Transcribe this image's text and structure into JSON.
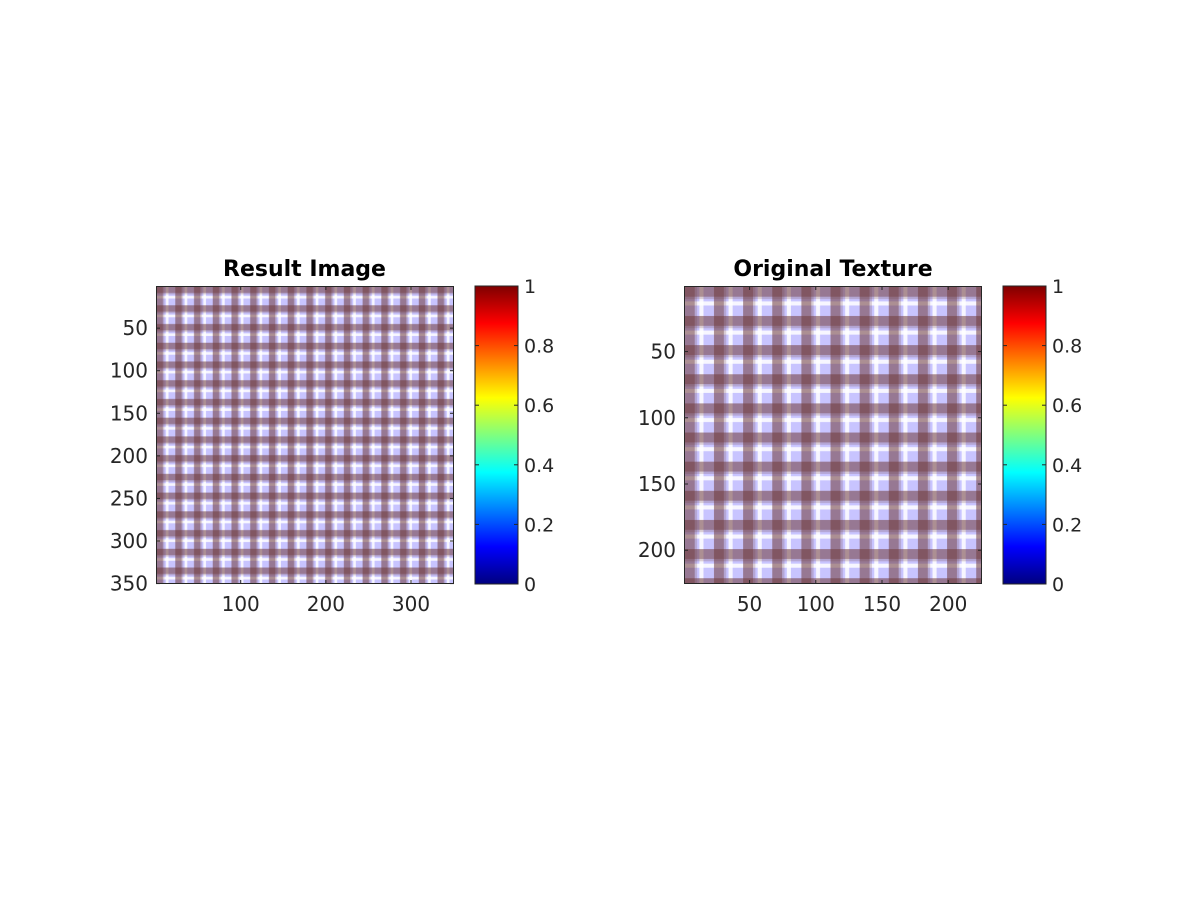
{
  "chart_data": [
    {
      "type": "heatmap",
      "title": "Result Image",
      "xlabel": "",
      "ylabel": "",
      "xlim": [
        0.5,
        350.5
      ],
      "ylim": [
        0.5,
        350.5
      ],
      "y_reversed": true,
      "xticks": [
        100,
        200,
        300
      ],
      "xtick_labels": [
        "100",
        "200",
        "300"
      ],
      "yticks": [
        50,
        100,
        150,
        200,
        250,
        300,
        350
      ],
      "ytick_labels": [
        "50",
        "100",
        "150",
        "200",
        "250",
        "300",
        "350"
      ],
      "pattern": {
        "kind": "plaid",
        "period": 22,
        "stripe_offset": 2,
        "dark_color": "#6e3a3a",
        "light_color": "#c8c4ff",
        "white_color": "#ffffff"
      },
      "colorbar": {
        "colormap": "jet",
        "limits": [
          0,
          1
        ],
        "ticks": [
          0,
          0.2,
          0.4,
          0.6,
          0.8,
          1
        ],
        "tick_labels": [
          "0",
          "0.2",
          "0.4",
          "0.6",
          "0.8",
          "1"
        ]
      }
    },
    {
      "type": "heatmap",
      "title": "Original Texture",
      "xlabel": "",
      "ylabel": "",
      "xlim": [
        0.5,
        225.5
      ],
      "ylim": [
        0.5,
        225.5
      ],
      "y_reversed": true,
      "xticks": [
        50,
        100,
        150,
        200
      ],
      "xtick_labels": [
        "50",
        "100",
        "150",
        "200"
      ],
      "yticks": [
        50,
        100,
        150,
        200
      ],
      "ytick_labels": [
        "50",
        "100",
        "150",
        "200"
      ],
      "pattern": {
        "kind": "plaid",
        "period": 22,
        "stripe_offset": 2,
        "dark_color": "#6e3a3a",
        "light_color": "#c8c4ff",
        "white_color": "#ffffff"
      },
      "colorbar": {
        "colormap": "jet",
        "limits": [
          0,
          1
        ],
        "ticks": [
          0,
          0.2,
          0.4,
          0.6,
          0.8,
          1
        ],
        "tick_labels": [
          "0",
          "0.2",
          "0.4",
          "0.6",
          "0.8",
          "1"
        ]
      }
    }
  ],
  "colors": {
    "axis": "#262626",
    "jet_stops": [
      "#00007f",
      "#0000ff",
      "#007fff",
      "#00ffff",
      "#7fff7f",
      "#ffff00",
      "#ff7f00",
      "#ff0000",
      "#7f0000"
    ]
  }
}
